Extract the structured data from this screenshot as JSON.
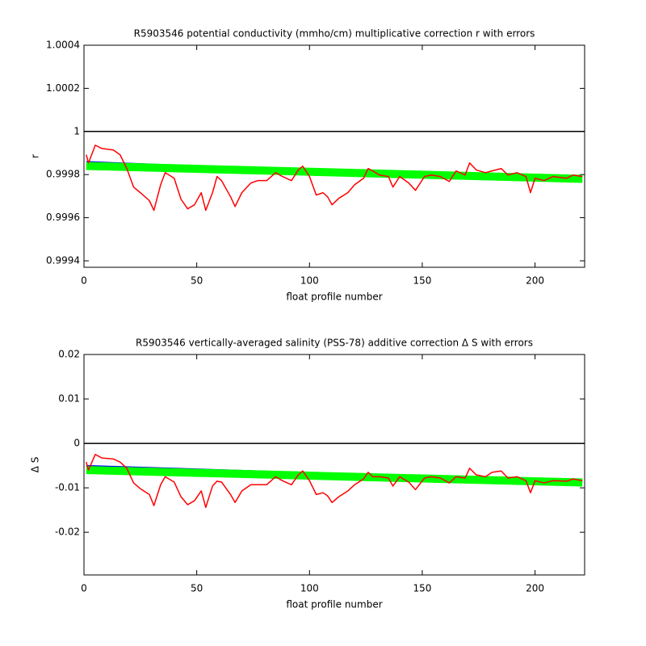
{
  "chart_data": [
    {
      "type": "line",
      "title": "R5903546 potential conductivity (mmho/cm) multiplicative correction r with errors",
      "xlabel": "float profile number",
      "ylabel": "r",
      "xlim": [
        0,
        222
      ],
      "xticks": [
        0,
        50,
        100,
        150,
        200
      ],
      "ylim": [
        0.99937,
        1.0004
      ],
      "yticks": [
        1.0004,
        1.0002,
        1,
        0.9998,
        0.9996,
        0.9994
      ],
      "hline": 1,
      "grid": false,
      "series": [
        {
          "color": "#0000ff",
          "x": [
            1,
            221
          ],
          "values": [
            0.99986,
            0.99977
          ]
        },
        {
          "color": "#00ff00",
          "x": [
            1,
            221
          ],
          "values": [
            0.99984,
            0.99978
          ]
        },
        {
          "color": "#ff0000",
          "x": [
            1,
            2,
            5,
            8,
            13,
            16,
            19,
            22,
            25,
            29,
            31,
            34,
            36,
            40,
            43,
            46,
            49,
            52,
            54,
            57,
            59,
            61,
            65,
            67,
            70,
            74,
            77,
            81,
            85,
            88,
            92,
            95,
            97,
            100,
            103,
            106,
            108,
            110,
            113,
            117,
            120,
            124,
            126,
            128,
            131,
            135,
            137,
            140,
            144,
            147,
            151,
            154,
            158,
            162,
            165,
            169,
            171,
            174,
            178,
            181,
            185,
            188,
            192,
            196,
            198,
            200,
            204,
            208,
            214,
            217,
            221
          ],
          "values": [
            0.999892,
            0.999854,
            0.999936,
            0.999921,
            0.999914,
            0.999892,
            0.999828,
            0.999742,
            0.999716,
            0.999679,
            0.999634,
            0.999753,
            0.999809,
            0.999783,
            0.999686,
            0.999641,
            0.99966,
            0.999716,
            0.999634,
            0.999716,
            0.999791,
            0.999772,
            0.999697,
            0.999652,
            0.999716,
            0.999761,
            0.999772,
            0.999772,
            0.999809,
            0.999791,
            0.999772,
            0.999821,
            0.999839,
            0.999791,
            0.999705,
            0.999716,
            0.999697,
            0.99966,
            0.99969,
            0.999716,
            0.999753,
            0.999783,
            0.999828,
            0.999817,
            0.999798,
            0.999791,
            0.999742,
            0.999791,
            0.999761,
            0.999727,
            0.999791,
            0.999798,
            0.999791,
            0.999768,
            0.999817,
            0.999798,
            0.999854,
            0.999821,
            0.999809,
            0.999817,
            0.999828,
            0.999798,
            0.999809,
            0.999791,
            0.999716,
            0.999783,
            0.999772,
            0.999791,
            0.999783,
            0.999798,
            0.999791
          ]
        }
      ]
    },
    {
      "type": "line",
      "title": "R5903546 vertically-averaged salinity (PSS-78) additive correction Δ S with errors",
      "xlabel": "float profile number",
      "ylabel": "Δ S",
      "xlim": [
        0,
        222
      ],
      "xticks": [
        0,
        50,
        100,
        150,
        200
      ],
      "ylim": [
        -0.0296,
        0.02
      ],
      "yticks": [
        0.02,
        0.01,
        0,
        -0.01,
        -0.02
      ],
      "hline": 0,
      "grid": false,
      "series": [
        {
          "color": "#0000ff",
          "x": [
            1,
            221
          ],
          "values": [
            -0.005,
            -0.0085
          ]
        },
        {
          "color": "#00ff00",
          "x": [
            1,
            221
          ],
          "values": [
            -0.006,
            -0.0088
          ]
        },
        {
          "color": "#ff0000",
          "x": [
            1,
            2,
            5,
            8,
            13,
            16,
            19,
            22,
            25,
            29,
            31,
            34,
            36,
            40,
            43,
            46,
            49,
            52,
            54,
            57,
            59,
            61,
            65,
            67,
            70,
            74,
            77,
            81,
            85,
            88,
            92,
            95,
            97,
            100,
            103,
            106,
            108,
            110,
            113,
            117,
            120,
            124,
            126,
            128,
            131,
            135,
            137,
            140,
            144,
            147,
            151,
            154,
            158,
            162,
            165,
            169,
            171,
            174,
            178,
            181,
            185,
            188,
            192,
            196,
            198,
            200,
            204,
            208,
            214,
            217,
            221
          ],
          "values": [
            -0.0042,
            -0.006,
            -0.0025,
            -0.0033,
            -0.0035,
            -0.0042,
            -0.0056,
            -0.0089,
            -0.0102,
            -0.0115,
            -0.014,
            -0.0093,
            -0.0075,
            -0.0087,
            -0.012,
            -0.0138,
            -0.0129,
            -0.0107,
            -0.0144,
            -0.0096,
            -0.0085,
            -0.0087,
            -0.0115,
            -0.0133,
            -0.0107,
            -0.0093,
            -0.0093,
            -0.0093,
            -0.0075,
            -0.0084,
            -0.0093,
            -0.0071,
            -0.0062,
            -0.0084,
            -0.0115,
            -0.0111,
            -0.0118,
            -0.0133,
            -0.012,
            -0.0107,
            -0.0093,
            -0.008,
            -0.0065,
            -0.0075,
            -0.0075,
            -0.0078,
            -0.0096,
            -0.0075,
            -0.0087,
            -0.0104,
            -0.0078,
            -0.0075,
            -0.0078,
            -0.0089,
            -0.0075,
            -0.0078,
            -0.0056,
            -0.0071,
            -0.0075,
            -0.0065,
            -0.0062,
            -0.0078,
            -0.0075,
            -0.0084,
            -0.0111,
            -0.0084,
            -0.0089,
            -0.0084,
            -0.0085,
            -0.008,
            -0.0084
          ]
        }
      ]
    }
  ]
}
